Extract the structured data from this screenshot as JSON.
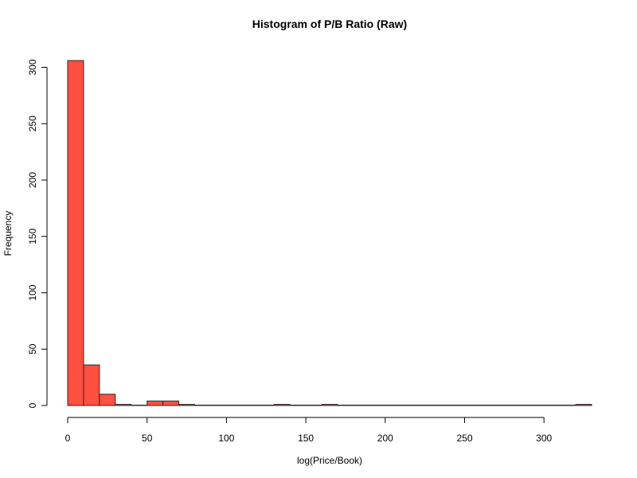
{
  "chart_data": {
    "type": "bar",
    "title": "Histogram of P/B Ratio (Raw)",
    "xlabel": "log(Price/Book)",
    "ylabel": "Frequency",
    "bar_color": "#FF4F3F",
    "bar_border_color": "#2B2B2B",
    "bin_width": 10,
    "bins": [
      {
        "start": 0,
        "end": 10,
        "count": 306
      },
      {
        "start": 10,
        "end": 20,
        "count": 36
      },
      {
        "start": 20,
        "end": 30,
        "count": 10
      },
      {
        "start": 30,
        "end": 40,
        "count": 1
      },
      {
        "start": 40,
        "end": 50,
        "count": 0
      },
      {
        "start": 50,
        "end": 60,
        "count": 4
      },
      {
        "start": 60,
        "end": 70,
        "count": 4
      },
      {
        "start": 70,
        "end": 80,
        "count": 1
      },
      {
        "start": 80,
        "end": 90,
        "count": 0
      },
      {
        "start": 90,
        "end": 100,
        "count": 0
      },
      {
        "start": 100,
        "end": 110,
        "count": 0
      },
      {
        "start": 110,
        "end": 120,
        "count": 0
      },
      {
        "start": 120,
        "end": 130,
        "count": 0
      },
      {
        "start": 130,
        "end": 140,
        "count": 1
      },
      {
        "start": 140,
        "end": 150,
        "count": 0
      },
      {
        "start": 150,
        "end": 160,
        "count": 0
      },
      {
        "start": 160,
        "end": 170,
        "count": 1
      },
      {
        "start": 170,
        "end": 180,
        "count": 0
      },
      {
        "start": 180,
        "end": 190,
        "count": 0
      },
      {
        "start": 190,
        "end": 200,
        "count": 0
      },
      {
        "start": 200,
        "end": 210,
        "count": 0
      },
      {
        "start": 210,
        "end": 220,
        "count": 0
      },
      {
        "start": 220,
        "end": 230,
        "count": 0
      },
      {
        "start": 230,
        "end": 240,
        "count": 0
      },
      {
        "start": 240,
        "end": 250,
        "count": 0
      },
      {
        "start": 250,
        "end": 260,
        "count": 0
      },
      {
        "start": 260,
        "end": 270,
        "count": 0
      },
      {
        "start": 270,
        "end": 280,
        "count": 0
      },
      {
        "start": 280,
        "end": 290,
        "count": 0
      },
      {
        "start": 290,
        "end": 300,
        "count": 0
      },
      {
        "start": 300,
        "end": 310,
        "count": 0
      },
      {
        "start": 310,
        "end": 320,
        "count": 0
      },
      {
        "start": 320,
        "end": 330,
        "count": 1
      }
    ],
    "xlim": [
      0,
      330
    ],
    "ylim": [
      0,
      306
    ],
    "x_ticks": [
      0,
      50,
      100,
      150,
      200,
      250,
      300
    ],
    "x_tick_labels": [
      "0",
      "50",
      "100",
      "150",
      "200",
      "250",
      "300"
    ],
    "y_ticks": [
      0,
      50,
      100,
      150,
      200,
      250,
      300
    ],
    "y_tick_labels": [
      "0",
      "50",
      "100",
      "150",
      "200",
      "250",
      "300"
    ],
    "grid": false,
    "legend": "none"
  }
}
